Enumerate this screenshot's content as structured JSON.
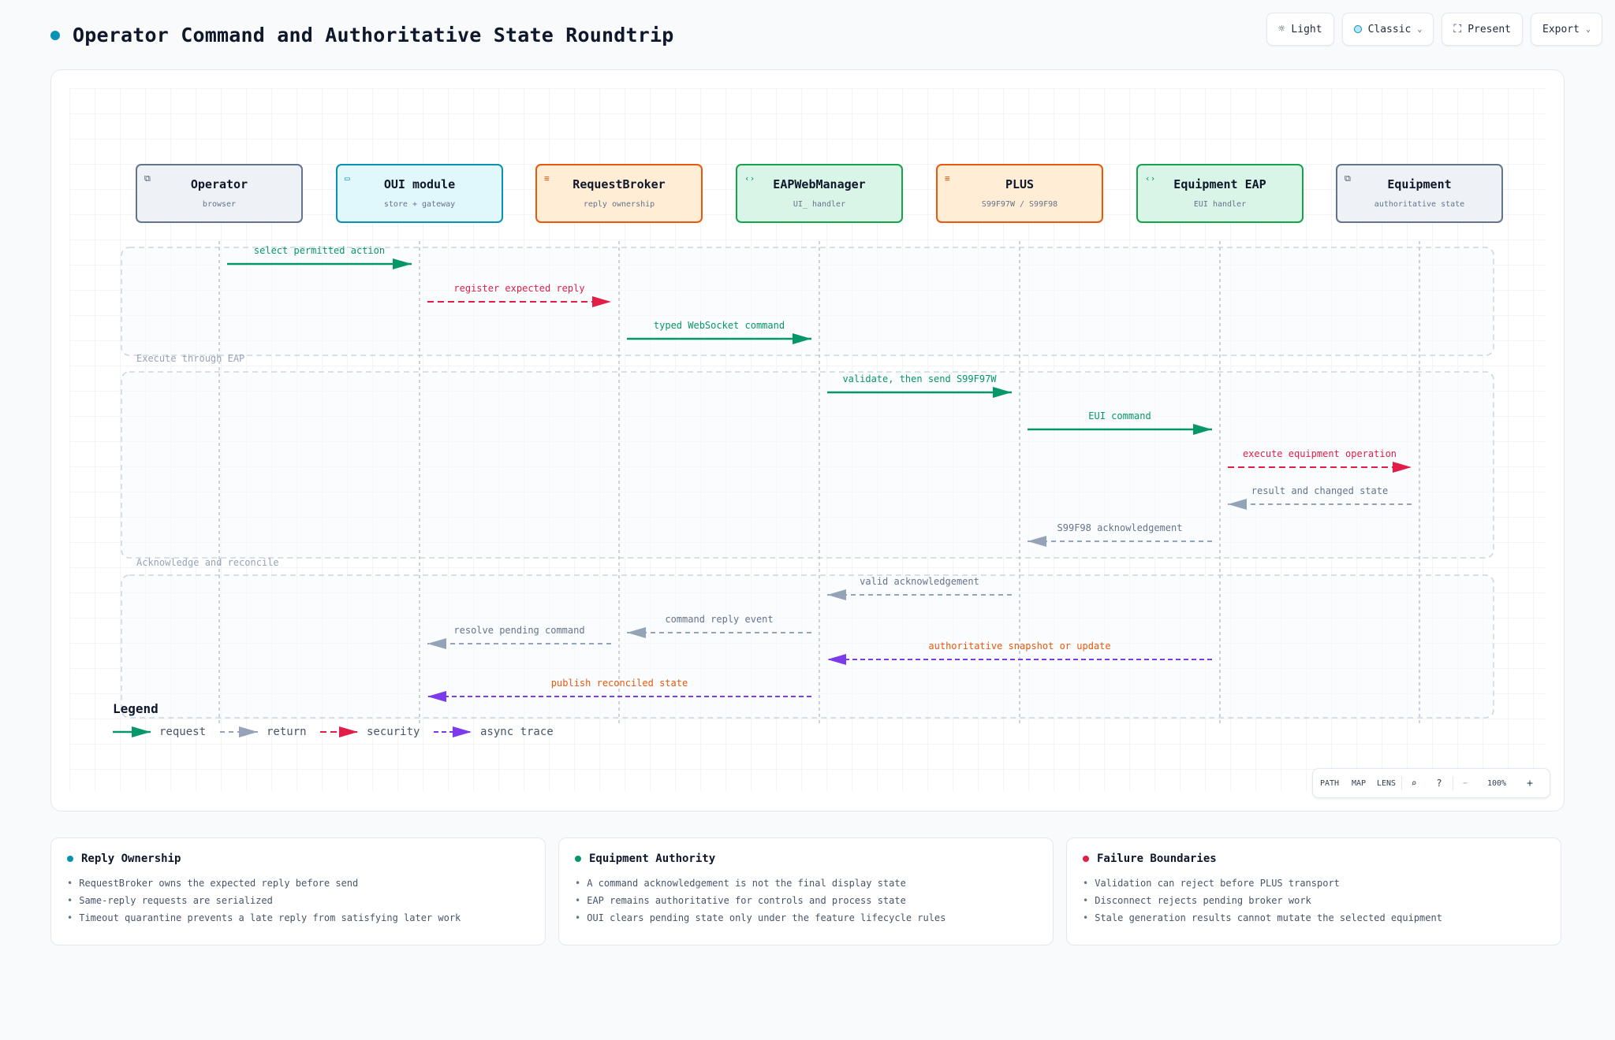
{
  "title": "Operator Command and Authoritative State Roundtrip",
  "toolbar": {
    "light": "Light",
    "classic": "Classic",
    "present": "Present",
    "export": "Export"
  },
  "participants": [
    {
      "name": "Operator",
      "sub": "browser",
      "theme": "gray",
      "icon": "window-icon"
    },
    {
      "name": "OUI module",
      "sub": "store + gateway",
      "theme": "cyan",
      "icon": "browser-icon"
    },
    {
      "name": "RequestBroker",
      "sub": "reply ownership",
      "theme": "orange",
      "icon": "list-icon"
    },
    {
      "name": "EAPWebManager",
      "sub": "UI_ handler",
      "theme": "green",
      "icon": "code-icon"
    },
    {
      "name": "PLUS",
      "sub": "S99F97W / S99F98",
      "theme": "orange",
      "icon": "list-icon"
    },
    {
      "name": "Equipment EAP",
      "sub": "EUI handler",
      "theme": "green",
      "icon": "code-icon"
    },
    {
      "name": "Equipment",
      "sub": "authoritative state",
      "theme": "gray",
      "icon": "window-icon"
    }
  ],
  "groups": [
    {
      "label": ""
    },
    {
      "label": "Execute through EAP"
    },
    {
      "label": "Acknowledge and reconcile"
    }
  ],
  "messages": [
    {
      "from": 0,
      "to": 1,
      "label": "select permitted action",
      "kind": "request"
    },
    {
      "from": 1,
      "to": 2,
      "label": "register expected reply",
      "kind": "security"
    },
    {
      "from": 2,
      "to": 3,
      "label": "typed WebSocket command",
      "kind": "request"
    },
    {
      "from": 3,
      "to": 4,
      "label": "validate, then send S99F97W",
      "kind": "request"
    },
    {
      "from": 4,
      "to": 5,
      "label": "EUI command",
      "kind": "request"
    },
    {
      "from": 5,
      "to": 6,
      "label": "execute equipment operation",
      "kind": "security"
    },
    {
      "from": 6,
      "to": 5,
      "label": "result and changed state",
      "kind": "return"
    },
    {
      "from": 5,
      "to": 4,
      "label": "S99F98 acknowledgement",
      "kind": "return"
    },
    {
      "from": 4,
      "to": 3,
      "label": "valid acknowledgement",
      "kind": "return"
    },
    {
      "from": 3,
      "to": 2,
      "label": "command reply event",
      "kind": "return"
    },
    {
      "from": 2,
      "to": 1,
      "label": "resolve pending command",
      "kind": "return"
    },
    {
      "from": 5,
      "to": 3,
      "label": "authoritative snapshot or update",
      "kind": "async"
    },
    {
      "from": 3,
      "to": 1,
      "label": "publish reconciled state",
      "kind": "async"
    }
  ],
  "legend": {
    "title": "Legend",
    "items": [
      {
        "kind": "request",
        "label": "request"
      },
      {
        "kind": "return",
        "label": "return"
      },
      {
        "kind": "security",
        "label": "security"
      },
      {
        "kind": "async",
        "label": "async trace"
      }
    ]
  },
  "colors": {
    "request": "#059669",
    "return": "#94a3b8",
    "security": "#e11d48",
    "async": "#7c3aed",
    "async_label": "#ea580c"
  },
  "zoom": {
    "path": "PATH",
    "map": "MAP",
    "lens": "LENS",
    "level": "100%",
    "minus": "−",
    "plus": "+"
  },
  "cards": [
    {
      "title": "Reply Ownership",
      "dot": "#0891b2",
      "items": [
        "RequestBroker owns the expected reply before send",
        "Same-reply requests are serialized",
        "Timeout quarantine prevents a late reply from satisfying later work"
      ]
    },
    {
      "title": "Equipment Authority",
      "dot": "#059669",
      "items": [
        "A command acknowledgement is not the final display state",
        "EAP remains authoritative for controls and process state",
        "OUI clears pending state only under the feature lifecycle rules"
      ]
    },
    {
      "title": "Failure Boundaries",
      "dot": "#e11d48",
      "items": [
        "Validation can reject before PLUS transport",
        "Disconnect rejects pending broker work",
        "Stale generation results cannot mutate the selected equipment"
      ]
    }
  ]
}
